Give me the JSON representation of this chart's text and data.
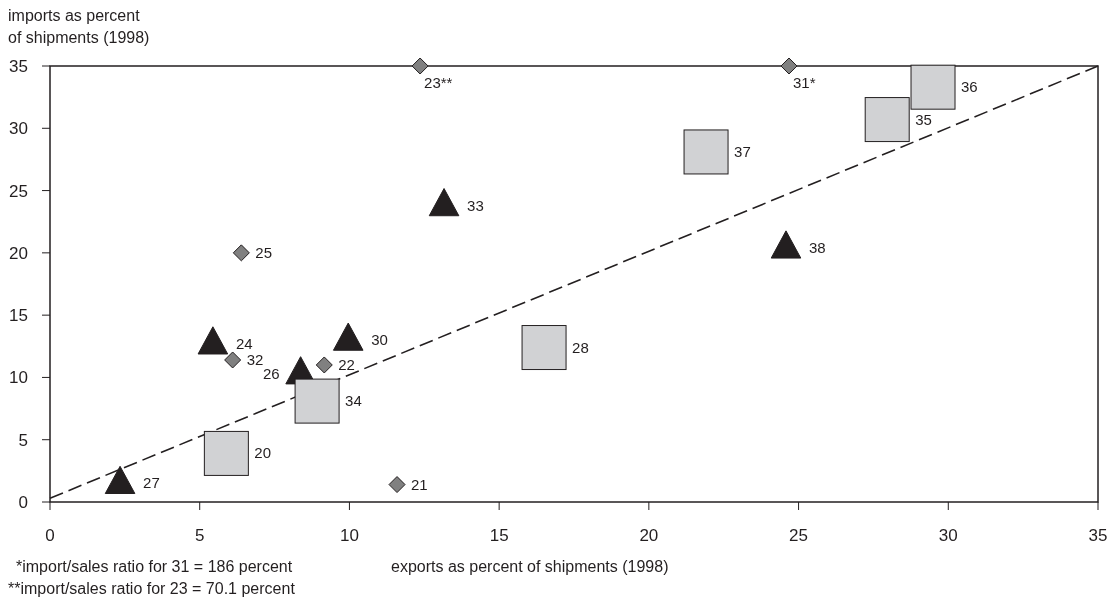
{
  "chart_data": {
    "type": "scatter",
    "ylabel": "imports as percent of shipments (1998)",
    "xlabel": "exports as percent of shipments (1998)",
    "xlim": [
      0,
      35
    ],
    "ylim": [
      0,
      35
    ],
    "xticks": [
      0,
      5,
      10,
      15,
      20,
      25,
      30,
      35
    ],
    "yticks": [
      0,
      5,
      10,
      15,
      20,
      25,
      30,
      35
    ],
    "grid": false,
    "series": [
      {
        "color": "#808080",
        "marker": "diamond",
        "x": [
          12.36,
          24.68,
          6.39,
          6.1,
          9.16,
          11.59
        ],
        "values": [
          35,
          35,
          20,
          11.4,
          11,
          1.4
        ]
      },
      {
        "color": "#231f20",
        "marker": "triangle",
        "x": [
          13.16,
          24.58,
          5.44,
          9.96,
          8.37,
          2.34
        ],
        "values": [
          23.8,
          20.4,
          12.7,
          13,
          10.3,
          1.5
        ]
      },
      {
        "color": "#d1d2d4",
        "marker": "square",
        "x": [
          5.89,
          8.92,
          16.5,
          21.91,
          27.96,
          29.49
        ],
        "values": [
          3.9,
          8.1,
          12.4,
          28.1,
          30.7,
          33.3
        ]
      },
      {
        "type": "line",
        "color": "#231f20",
        "line_style": "dashed",
        "marker": "none",
        "x": [
          0,
          35
        ],
        "values": [
          0.3,
          35
        ]
      }
    ],
    "annotations": [
      {
        "text": "23**",
        "x": 12.36,
        "y": 35
      },
      {
        "text": "31*",
        "x": 24.68,
        "y": 35
      },
      {
        "text": "25",
        "x": 6.39,
        "y": 20
      },
      {
        "text": "32",
        "x": 6.1,
        "y": 11.4
      },
      {
        "text": "22",
        "x": 9.16,
        "y": 11
      },
      {
        "text": "21",
        "x": 11.59,
        "y": 1.4
      },
      {
        "text": "33",
        "x": 13.16,
        "y": 23.8
      },
      {
        "text": "38",
        "x": 24.58,
        "y": 20.4
      },
      {
        "text": "24",
        "x": 5.44,
        "y": 12.7
      },
      {
        "text": "30",
        "x": 9.96,
        "y": 13
      },
      {
        "text": "26",
        "x": 8.37,
        "y": 10.3
      },
      {
        "text": "27",
        "x": 2.34,
        "y": 1.5
      },
      {
        "text": "20",
        "x": 5.89,
        "y": 3.9
      },
      {
        "text": "34",
        "x": 8.92,
        "y": 8.1
      },
      {
        "text": "28",
        "x": 16.5,
        "y": 12.4
      },
      {
        "text": "37",
        "x": 21.91,
        "y": 28.1
      },
      {
        "text": "35",
        "x": 27.96,
        "y": 30.7
      },
      {
        "text": "36",
        "x": 29.49,
        "y": 33.3
      },
      "*import/sales ratio for 31 = 186 percent",
      "**import/sales ratio for 23 = 70.1 percent"
    ]
  }
}
